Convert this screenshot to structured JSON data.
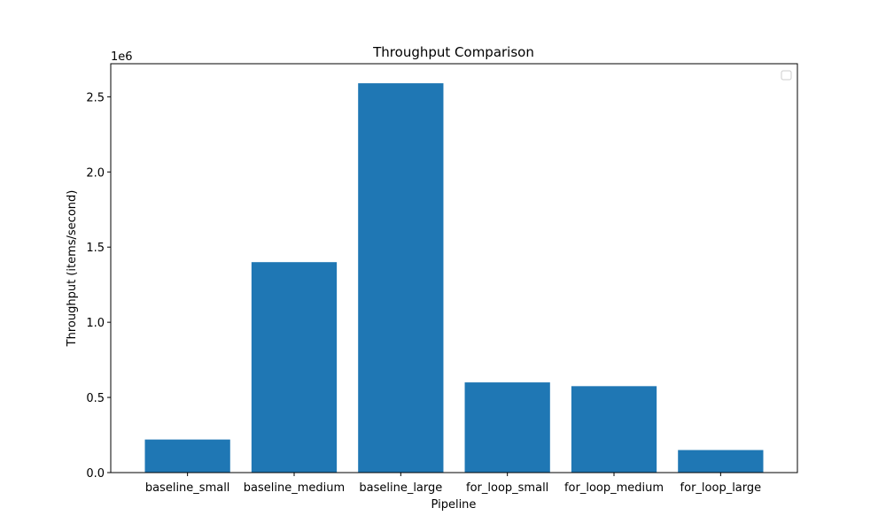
{
  "chart_data": {
    "type": "bar",
    "title": "Throughput Comparison",
    "xlabel": "Pipeline",
    "ylabel": "Throughput (items/second)",
    "y_offset_text": "1e6",
    "categories": [
      "baseline_small",
      "baseline_medium",
      "baseline_large",
      "for_loop_small",
      "for_loop_medium",
      "for_loop_large"
    ],
    "values": [
      220000,
      1400000,
      2590000,
      600000,
      575000,
      150000
    ],
    "ylim": [
      0,
      2720000
    ],
    "yticks": [
      0,
      500000,
      1000000,
      1500000,
      2000000,
      2500000
    ],
    "ytick_labels": [
      "0.0",
      "0.5",
      "1.0",
      "1.5",
      "2.0",
      "2.5"
    ],
    "bar_color": "#1f77b4",
    "grid": false,
    "legend": {
      "placement": "top-right",
      "entries": []
    }
  }
}
